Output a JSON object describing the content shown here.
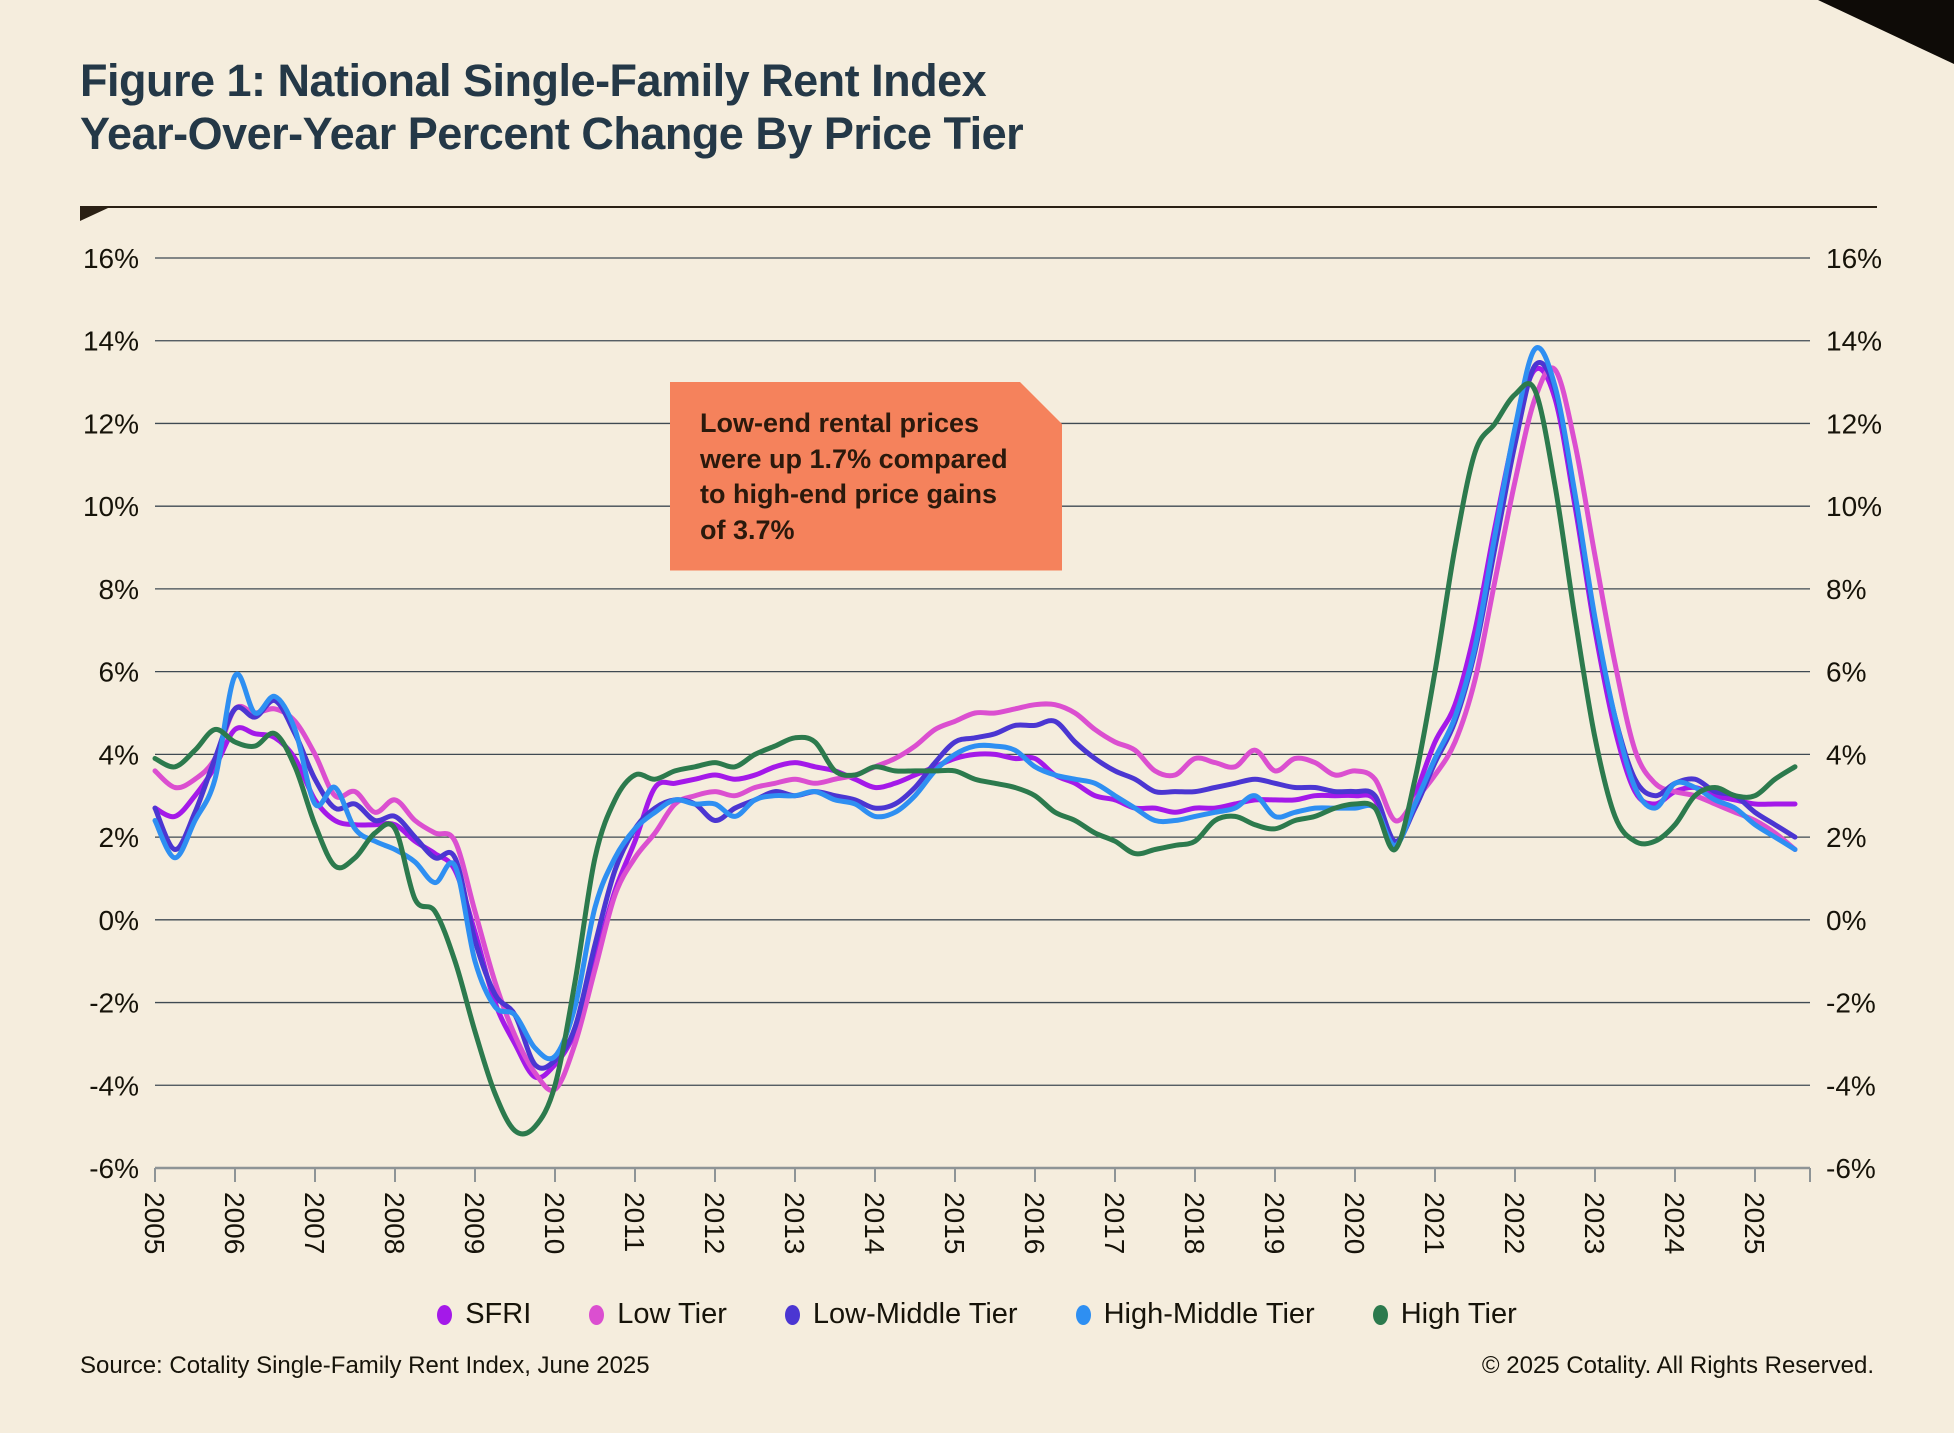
{
  "page": {
    "background": "#F5EDDD",
    "corner_triangle_color": "#0E0B07"
  },
  "header": {
    "title_line1": "Figure 1: National Single-Family Rent Index",
    "title_line2": "Year-Over-Year Percent Change By Price Tier",
    "title_color": "#243847"
  },
  "annotation": {
    "text_lines": [
      "Low-end rental prices",
      "were up 1.7% compared",
      "to high-end price gains",
      "of 3.7%"
    ],
    "bg_color": "#F5825C",
    "text_color": "#2B190C"
  },
  "footer": {
    "source": "Source: Cotality Single-Family Rent Index, June 2025",
    "copyright": "© 2025 Cotality. All Rights Reserved."
  },
  "chart_data": {
    "type": "line",
    "title": "National Single-Family Rent Index Year-Over-Year Percent Change By Price Tier",
    "xlabel": "",
    "ylabel": "",
    "grid": true,
    "legend_position": "bottom",
    "ylim": [
      -6,
      16
    ],
    "y_ticks": [
      16,
      14,
      12,
      10,
      8,
      6,
      4,
      2,
      0,
      -2,
      -4,
      -6
    ],
    "y_tick_suffix": "%",
    "xlim": [
      2005,
      2025.7
    ],
    "x_ticks": [
      2005,
      2006,
      2007,
      2008,
      2009,
      2010,
      2011,
      2012,
      2013,
      2014,
      2015,
      2016,
      2017,
      2018,
      2019,
      2020,
      2021,
      2022,
      2023,
      2024,
      2025
    ],
    "x_start": 2005.0,
    "x_step": 0.25,
    "colors": {
      "gridline": "#3F4A52",
      "axis": "#8E9496",
      "tick_label": "#161309"
    },
    "series": [
      {
        "name": "SFRI",
        "color": "#A419E9",
        "values": [
          2.7,
          2.5,
          3.0,
          3.7,
          4.6,
          4.5,
          4.4,
          3.9,
          2.9,
          2.4,
          2.3,
          2.3,
          2.3,
          1.9,
          1.6,
          1.2,
          -0.3,
          -2.0,
          -3.0,
          -3.8,
          -3.5,
          -2.7,
          -1.0,
          0.7,
          1.9,
          3.2,
          3.3,
          3.4,
          3.5,
          3.4,
          3.5,
          3.7,
          3.8,
          3.7,
          3.6,
          3.4,
          3.2,
          3.3,
          3.5,
          3.7,
          3.9,
          4.0,
          4.0,
          3.9,
          3.9,
          3.5,
          3.3,
          3.0,
          2.9,
          2.7,
          2.7,
          2.6,
          2.7,
          2.7,
          2.8,
          2.9,
          2.9,
          2.9,
          3.0,
          3.0,
          3.0,
          2.9,
          1.8,
          3.0,
          4.3,
          5.2,
          7.0,
          9.5,
          11.8,
          13.3,
          12.6,
          10.0,
          7.0,
          4.6,
          3.1,
          2.8,
          3.1,
          3.2,
          3.0,
          2.9,
          2.8,
          2.8,
          2.8
        ]
      },
      {
        "name": "Low Tier",
        "color": "#DB4FD0",
        "values": [
          3.6,
          3.2,
          3.4,
          3.9,
          5.1,
          5.0,
          5.1,
          4.8,
          4.0,
          3.0,
          3.1,
          2.6,
          2.9,
          2.4,
          2.1,
          1.9,
          0.2,
          -1.5,
          -2.8,
          -3.7,
          -4.1,
          -3.0,
          -1.2,
          0.6,
          1.5,
          2.1,
          2.8,
          3.0,
          3.1,
          3.0,
          3.2,
          3.3,
          3.4,
          3.3,
          3.4,
          3.5,
          3.7,
          3.9,
          4.2,
          4.6,
          4.8,
          5.0,
          5.0,
          5.1,
          5.2,
          5.2,
          5.0,
          4.6,
          4.3,
          4.1,
          3.6,
          3.5,
          3.9,
          3.8,
          3.7,
          4.1,
          3.6,
          3.9,
          3.8,
          3.5,
          3.6,
          3.4,
          2.4,
          2.9,
          3.5,
          4.3,
          5.8,
          8.2,
          10.6,
          12.6,
          13.3,
          11.5,
          8.8,
          6.2,
          4.1,
          3.3,
          3.1,
          3.0,
          2.8,
          2.6,
          2.4,
          2.1,
          1.7
        ]
      },
      {
        "name": "Low-Middle Tier",
        "color": "#4B36D2",
        "values": [
          2.7,
          1.7,
          2.6,
          3.9,
          5.1,
          4.9,
          5.3,
          4.5,
          3.4,
          2.7,
          2.8,
          2.4,
          2.5,
          2.0,
          1.5,
          1.5,
          -0.5,
          -1.8,
          -2.3,
          -3.5,
          -3.4,
          -2.6,
          -0.6,
          1.2,
          2.2,
          2.7,
          2.9,
          2.8,
          2.4,
          2.7,
          2.9,
          3.1,
          3.0,
          3.1,
          3.0,
          2.9,
          2.7,
          2.8,
          3.2,
          3.8,
          4.3,
          4.4,
          4.5,
          4.7,
          4.7,
          4.8,
          4.3,
          3.9,
          3.6,
          3.4,
          3.1,
          3.1,
          3.1,
          3.2,
          3.3,
          3.4,
          3.3,
          3.2,
          3.2,
          3.1,
          3.1,
          3.0,
          1.9,
          2.7,
          3.8,
          4.8,
          6.5,
          9.0,
          11.5,
          13.4,
          12.8,
          10.2,
          7.2,
          4.9,
          3.4,
          3.0,
          3.3,
          3.4,
          3.1,
          3.0,
          2.6,
          2.3,
          2.0
        ]
      },
      {
        "name": "High-Middle Tier",
        "color": "#2E8FF2",
        "values": [
          2.4,
          1.5,
          2.4,
          3.4,
          5.9,
          5.0,
          5.4,
          4.6,
          2.8,
          3.2,
          2.2,
          1.9,
          1.7,
          1.4,
          0.9,
          1.3,
          -1.0,
          -2.1,
          -2.3,
          -3.1,
          -3.3,
          -2.1,
          0.3,
          1.5,
          2.2,
          2.6,
          2.9,
          2.8,
          2.8,
          2.5,
          2.9,
          3.0,
          3.0,
          3.1,
          2.9,
          2.8,
          2.5,
          2.6,
          3.0,
          3.6,
          4.0,
          4.2,
          4.2,
          4.1,
          3.7,
          3.5,
          3.4,
          3.3,
          3.0,
          2.7,
          2.4,
          2.4,
          2.5,
          2.6,
          2.7,
          3.0,
          2.5,
          2.6,
          2.7,
          2.7,
          2.7,
          2.7,
          1.8,
          2.8,
          3.9,
          4.9,
          6.6,
          9.3,
          11.9,
          13.8,
          12.9,
          10.3,
          7.3,
          4.9,
          3.2,
          2.7,
          3.3,
          3.2,
          2.9,
          2.7,
          2.3,
          2.0,
          1.7
        ]
      },
      {
        "name": "High Tier",
        "color": "#2C7A4D",
        "values": [
          3.9,
          3.7,
          4.1,
          4.6,
          4.3,
          4.2,
          4.5,
          3.7,
          2.3,
          1.3,
          1.5,
          2.1,
          2.2,
          0.5,
          0.2,
          -1.0,
          -2.7,
          -4.2,
          -5.1,
          -5.0,
          -4.0,
          -1.5,
          1.5,
          2.9,
          3.5,
          3.4,
          3.6,
          3.7,
          3.8,
          3.7,
          4.0,
          4.2,
          4.4,
          4.3,
          3.6,
          3.5,
          3.7,
          3.6,
          3.6,
          3.6,
          3.6,
          3.4,
          3.3,
          3.2,
          3.0,
          2.6,
          2.4,
          2.1,
          1.9,
          1.6,
          1.7,
          1.8,
          1.9,
          2.4,
          2.5,
          2.3,
          2.2,
          2.4,
          2.5,
          2.7,
          2.8,
          2.7,
          1.7,
          3.4,
          6.0,
          9.0,
          11.3,
          12.0,
          12.7,
          12.8,
          10.5,
          7.3,
          4.4,
          2.5,
          1.9,
          1.9,
          2.3,
          3.0,
          3.2,
          3.0,
          3.0,
          3.4,
          3.7
        ]
      }
    ]
  }
}
